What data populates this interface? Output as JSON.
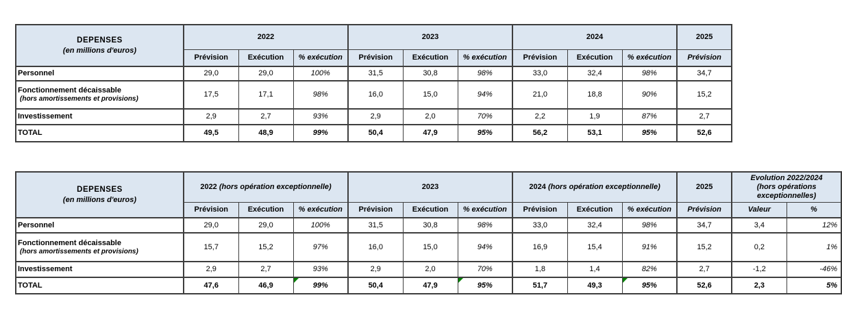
{
  "colors": {
    "header_fill": "#dce6f1",
    "header_text": "#17375d",
    "border": "#3e3e3e",
    "body_text": "#000000",
    "flag_green": "#008000"
  },
  "table1": {
    "header": {
      "title": "DEPENSES",
      "subtitle": "(en millions d'euros)",
      "years": [
        "2022",
        "2023",
        "2024",
        "2025"
      ],
      "subheaders": [
        "Prévision",
        "Exécution",
        "% exécution",
        "Prévision",
        "Exécution",
        "% exécution",
        "Prévision",
        "Exécution",
        "% exécution",
        "Prévision"
      ]
    },
    "rows": [
      {
        "label": "Personnel",
        "sublabel": "",
        "cells": [
          "29,0",
          "29,0",
          "100%",
          "31,5",
          "30,8",
          "98%",
          "33,0",
          "32,4",
          "98%",
          "34,7"
        ]
      },
      {
        "label": "Fonctionnement décaissable",
        "sublabel": "(hors amortissements et provisions)",
        "cells": [
          "17,5",
          "17,1",
          "98%",
          "16,0",
          "15,0",
          "94%",
          "21,0",
          "18,8",
          "90%",
          "15,2"
        ]
      },
      {
        "label": "Investissement",
        "sublabel": "",
        "cells": [
          "2,9",
          "2,7",
          "93%",
          "2,9",
          "2,0",
          "70%",
          "2,2",
          "1,9",
          "87%",
          "2,7"
        ]
      },
      {
        "label": "TOTAL",
        "sublabel": "",
        "cells": [
          "49,5",
          "48,9",
          "99%",
          "50,4",
          "47,9",
          "95%",
          "56,2",
          "53,1",
          "95%",
          "52,6"
        ]
      }
    ]
  },
  "table2": {
    "header": {
      "title": "DEPENSES",
      "subtitle": "(en millions d'euros)",
      "years": [
        {
          "year": "2022",
          "note": "(hors opération exceptionnelle)"
        },
        {
          "year": "2023",
          "note": ""
        },
        {
          "year": "2024",
          "note": "(hors opération exceptionnelle)"
        },
        {
          "year": "2025",
          "note": ""
        }
      ],
      "evolution": "Evolution 2022/2024\n(hors opérations\nexceptionnelles)",
      "subheaders": [
        "Prévision",
        "Exécution",
        "% exécution",
        "Prévision",
        "Exécution",
        "% exécution",
        "Prévision",
        "Exécution",
        "% exécution",
        "Prévision",
        "Valeur",
        "%"
      ]
    },
    "rows": [
      {
        "label": "Personnel",
        "sublabel": "",
        "cells": [
          "29,0",
          "29,0",
          "100%",
          "31,5",
          "30,8",
          "98%",
          "33,0",
          "32,4",
          "98%",
          "34,7",
          "3,4",
          "12%"
        ]
      },
      {
        "label": "Fonctionnement décaissable",
        "sublabel": "(hors amortissements et provisions)",
        "cells": [
          "15,7",
          "15,2",
          "97%",
          "16,0",
          "15,0",
          "94%",
          "16,9",
          "15,4",
          "91%",
          "15,2",
          "0,2",
          "1%"
        ]
      },
      {
        "label": "Investissement",
        "sublabel": "",
        "cells": [
          "2,9",
          "2,7",
          "93%",
          "2,9",
          "2,0",
          "70%",
          "1,8",
          "1,4",
          "82%",
          "2,7",
          "-1,2",
          "-46%"
        ]
      },
      {
        "label": "TOTAL",
        "sublabel": "",
        "cells": [
          "47,6",
          "46,9",
          "99%",
          "50,4",
          "47,9",
          "95%",
          "51,7",
          "49,3",
          "95%",
          "52,6",
          "2,3",
          "5%"
        ]
      }
    ]
  }
}
